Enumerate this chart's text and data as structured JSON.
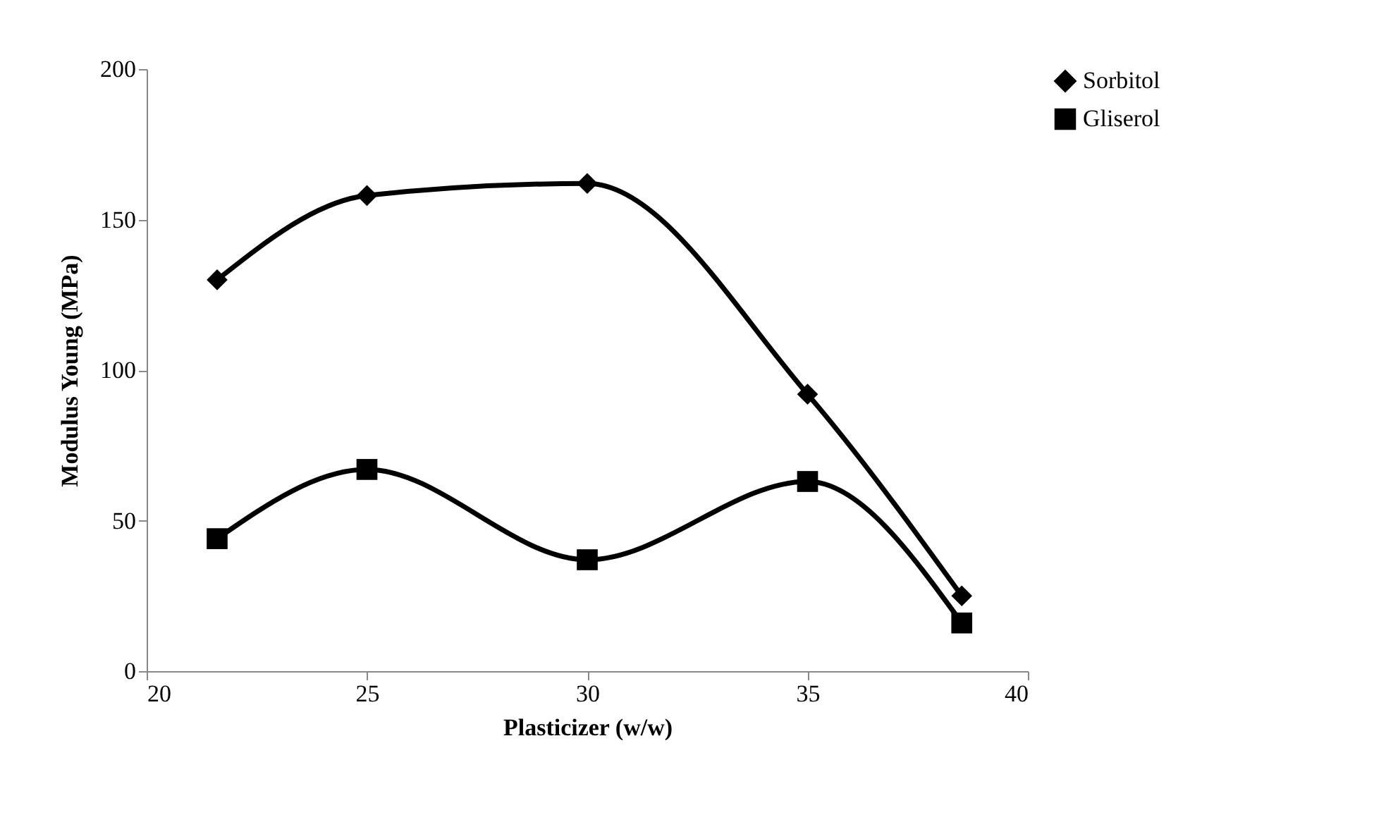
{
  "chart_data": {
    "type": "line",
    "xlabel": "Plasticizer (w/w)",
    "ylabel": "Modulus Young (MPa)",
    "x": [
      21.6,
      25,
      30,
      35,
      38.5
    ],
    "series": [
      {
        "name": "Sorbitol",
        "color": "#000000",
        "marker": "diamond",
        "values": [
          130,
          158,
          162,
          92,
          25
        ]
      },
      {
        "name": "Gliserol",
        "color": "#000000",
        "marker": "square",
        "values": [
          44,
          67,
          37,
          63,
          16
        ]
      }
    ],
    "xlim": [
      20,
      40
    ],
    "xticks": [
      20,
      25,
      30,
      35,
      40
    ],
    "ylim": [
      0,
      200
    ],
    "yticks": [
      0,
      50,
      100,
      150,
      200
    ],
    "grid": false,
    "legend": "right",
    "line_style": "solid"
  }
}
